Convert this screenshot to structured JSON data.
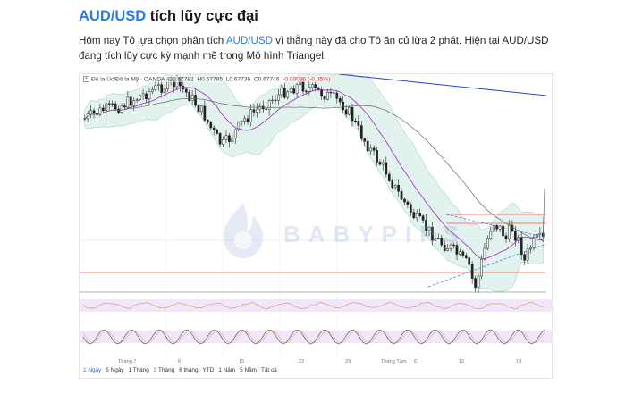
{
  "article": {
    "title_pair": "AUD/USD",
    "title_rest": " tích lũy cực đại",
    "intro_part1": "Hôm nay Tô lựa chọn phân tích ",
    "intro_link": "AUD/USD",
    "intro_part2": " vì thằng này đã cho Tô ăn củ lừa 2 phát. Hiện tại AUD/USD đang tích lũy cực kỳ mạnh mẽ trong Mô hình Triangel."
  },
  "chart": {
    "legend_symbol": "Đô la Úc/Đô la Mỹ · OANDA",
    "o": "0.67782",
    "h": "0.67785",
    "l": "0.67736",
    "c": "0.67746",
    "change": "-0.00036 (-0.05%)",
    "watermark": "BABYPIPS",
    "x_labels": [
      "Tháng 7",
      "8",
      "15",
      "22",
      "29",
      "Tháng Tám",
      "6",
      "12",
      "19"
    ],
    "ranges": [
      "1 Ngày",
      "5 Ngày",
      "1 Tháng",
      "3 Tháng",
      "6 tháng",
      "YTD",
      "1 Năm",
      "5 Năm",
      "Tất cả"
    ],
    "selected_range": "1 Ngày",
    "colors": {
      "up": "#222222",
      "down": "#222222",
      "bollinger_fill": "#cfe9e5",
      "ma_long": "#666666",
      "ma_short": "#9c27b0",
      "trend_line": "#2747c9",
      "level_line": "#f05a50",
      "oscillator_fill": "#e4d3f5"
    }
  }
}
